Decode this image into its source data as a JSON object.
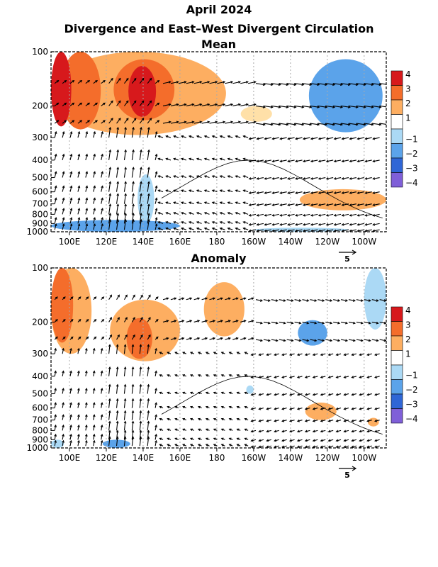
{
  "title": "April 2024",
  "subtitle": "Divergence and East–West Divergent Circulation",
  "vector_scale_label": "5",
  "chart_data": [
    {
      "type": "heatmap",
      "title": "Mean",
      "x_ticks": [
        "100E",
        "120E",
        "140E",
        "160E",
        "180",
        "160W",
        "140W",
        "120W",
        "100W"
      ],
      "x_range_lon_east": [
        90,
        272
      ],
      "y_ticks": [
        100,
        200,
        300,
        400,
        500,
        600,
        700,
        800,
        900,
        1000
      ],
      "y_range_hPa": [
        1000,
        100
      ],
      "y_scale": "log-pressure",
      "grid": "dotted vertical at each labeled longitude",
      "features": [
        {
          "lon": [
            90,
            101
          ],
          "p": [
            100,
            260
          ],
          "value": 4
        },
        {
          "lon": [
            95,
            117
          ],
          "p": [
            100,
            270
          ],
          "value": 3
        },
        {
          "lon": [
            124,
            157
          ],
          "p": [
            110,
            240
          ],
          "value": 3
        },
        {
          "lon": [
            132,
            147
          ],
          "p": [
            120,
            230
          ],
          "value": 4
        },
        {
          "lon": [
            90,
            185
          ],
          "p": [
            100,
            290
          ],
          "value": 2
        },
        {
          "lon": [
            193,
            210
          ],
          "p": [
            200,
            245
          ],
          "value": 1
        },
        {
          "lon": [
            230,
            270
          ],
          "p": [
            110,
            280
          ],
          "value": -2
        },
        {
          "lon": [
            225,
            272
          ],
          "p": [
            580,
            760
          ],
          "value": 2
        },
        {
          "lon": [
            90,
            160
          ],
          "p": [
            860,
            1000
          ],
          "value": -2
        },
        {
          "lon": [
            137,
            146
          ],
          "p": [
            480,
            900
          ],
          "value": -1
        },
        {
          "lon": [
            200,
            252
          ],
          "p": [
            950,
            1000
          ],
          "value": -1
        }
      ]
    },
    {
      "type": "heatmap",
      "title": "Anomaly",
      "x_ticks": [
        "100E",
        "120E",
        "140E",
        "160E",
        "180",
        "160W",
        "140W",
        "120W",
        "100W"
      ],
      "x_range_lon_east": [
        90,
        272
      ],
      "y_ticks": [
        100,
        200,
        300,
        400,
        500,
        600,
        700,
        800,
        900,
        1000
      ],
      "y_range_hPa": [
        1000,
        100
      ],
      "y_scale": "log-pressure",
      "grid": "dotted vertical at each labeled longitude",
      "features": [
        {
          "lon": [
            90,
            102
          ],
          "p": [
            100,
            260
          ],
          "value": 3
        },
        {
          "lon": [
            90,
            112
          ],
          "p": [
            100,
            300
          ],
          "value": 2
        },
        {
          "lon": [
            122,
            160
          ],
          "p": [
            150,
            330
          ],
          "value": 2
        },
        {
          "lon": [
            131,
            145
          ],
          "p": [
            190,
            320
          ],
          "value": 3
        },
        {
          "lon": [
            173,
            195
          ],
          "p": [
            120,
            240
          ],
          "value": 2
        },
        {
          "lon": [
            224,
            240
          ],
          "p": [
            195,
            270
          ],
          "value": -2
        },
        {
          "lon": [
            260,
            272
          ],
          "p": [
            100,
            220
          ],
          "value": -1
        },
        {
          "lon": [
            228,
            245
          ],
          "p": [
            560,
            700
          ],
          "value": 2
        },
        {
          "lon": [
            262,
            268
          ],
          "p": [
            680,
            760
          ],
          "value": 2
        },
        {
          "lon": [
            118,
            133
          ],
          "p": [
            900,
            1000
          ],
          "value": -2
        },
        {
          "lon": [
            90,
            97
          ],
          "p": [
            900,
            1000
          ],
          "value": -1
        },
        {
          "lon": [
            196,
            200
          ],
          "p": [
            450,
            500
          ],
          "value": -1
        }
      ]
    }
  ],
  "colorbar": {
    "levels": [
      {
        "label": "4",
        "color": "#d7191c"
      },
      {
        "label": "3",
        "color": "#f46d2b"
      },
      {
        "label": "2",
        "color": "#fdae61"
      },
      {
        "label": "1",
        "color": "#ffffff"
      },
      {
        "label": "−1",
        "color": "#abd9f5"
      },
      {
        "label": "−2",
        "color": "#5ba3ea"
      },
      {
        "label": "−3",
        "color": "#2f66d6"
      },
      {
        "label": "−4",
        "color": "#7f5fd8"
      }
    ],
    "bottom_color": "#8c7ae0"
  }
}
